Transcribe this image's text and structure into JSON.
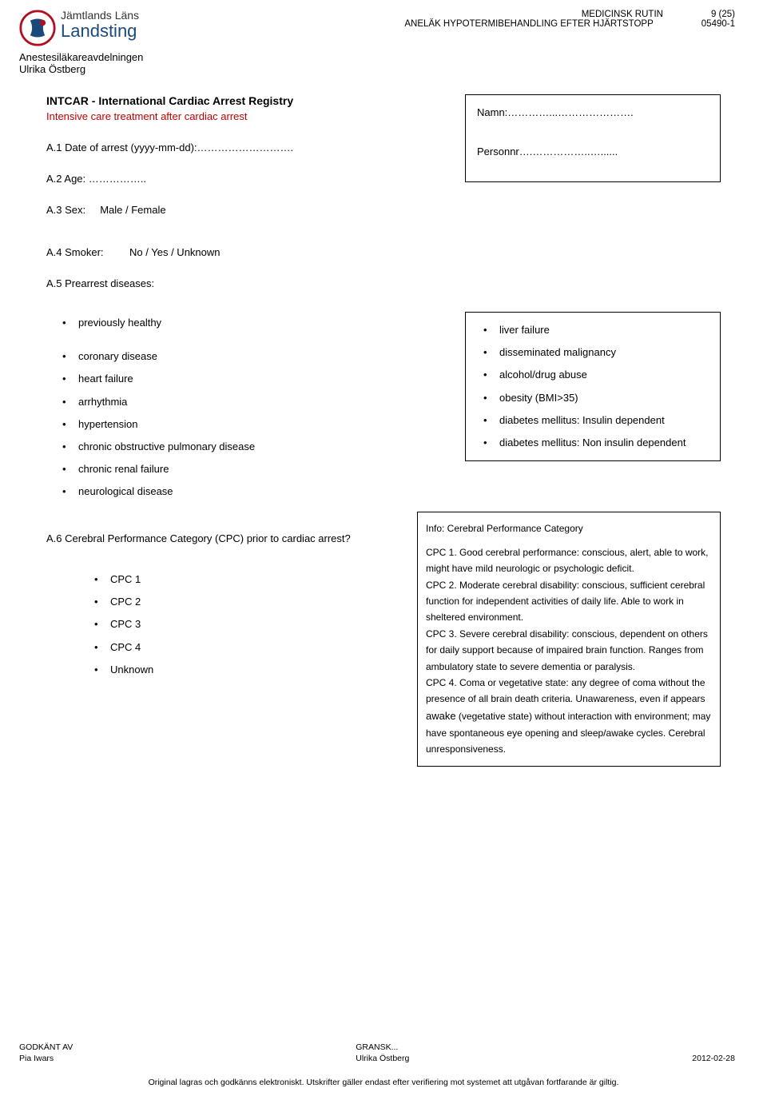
{
  "header": {
    "org_line1": "Jämtlands Läns",
    "org_line2": "Landsting",
    "doc_type": "MEDICINSK RUTIN",
    "page_label": "9 (25)",
    "doc_title": "ANELÄK HYPOTERMIBEHANDLING EFTER HJÄRTSTOPP",
    "doc_ref": "05490-1",
    "department": "Anestesiläkareavdelningen",
    "author": "Ulrika Östberg"
  },
  "form": {
    "title1": "INTCAR - International Cardiac Arrest Registry",
    "title2": "Intensive care treatment after cardiac arrest",
    "a1": "A.1 Date of arrest (yyyy-mm-dd):……………………….",
    "a2": "A.2 Age:       ……………..",
    "a3_label": "A.3 Sex:",
    "a3_value": "Male / Female",
    "a4_label": "A.4 Smoker:",
    "a4_value": "No / Yes / Unknown",
    "namn": "Namn:…………...………………….",
    "personnr": "Personnr….……………..…......",
    "a5_label": "A.5 Prearrest diseases:",
    "a5_left": [
      "previously healthy",
      "coronary disease",
      "heart failure",
      "arrhythmia",
      "hypertension",
      "chronic obstructive pulmonary disease",
      "chronic renal failure",
      "neurological disease"
    ],
    "a5_right": [
      "liver failure",
      "disseminated malignancy",
      "alcohol/drug abuse",
      "obesity (BMI>35)",
      "diabetes mellitus: Insulin dependent",
      "diabetes mellitus: Non insulin dependent"
    ],
    "a6_label": "A.6 Cerebral Performance Category (CPC) prior to cardiac arrest?",
    "cpc_options": [
      "CPC 1",
      "CPC 2",
      "CPC 3",
      "CPC 4",
      "Unknown"
    ],
    "info_title": "Info: Cerebral Performance Category",
    "cpc1": "CPC 1. Good cerebral performance: conscious, alert, able to work, might have mild neurologic or psychologic deficit.",
    "cpc2": " CPC 2. Moderate cerebral disability: conscious, sufficient cerebral function for independent activities of daily life. Able to work in sheltered environment.",
    "cpc3": " CPC 3. Severe cerebral disability: conscious, dependent on others for daily support because of impaired brain function. Ranges from ambulatory state to severe dementia or paralysis.",
    "cpc4a": " CPC 4. Coma or vegetative state: any degree of coma without the presence of all brain death criteria. Unawareness, even if appears ",
    "cpc4_awake": "awake",
    "cpc4b": " (vegetative state) without interaction with environment; may have spontaneous eye opening and sleep/awake cycles. Cerebral unresponsiveness."
  },
  "footer": {
    "approved_label": "GODKÄNT AV",
    "approved_by": "Pia Iwars",
    "reviewed_label": "GRANSK...",
    "reviewed_by": "Ulrika Östberg",
    "date": "2012-02-28",
    "disclaimer": "Original lagras och godkänns elektroniskt. Utskrifter gäller endast efter verifiering mot systemet att utgåvan fortfarande är giltig."
  },
  "colors": {
    "accent_red": "#c00000",
    "logo_blue": "#1a4a7a"
  }
}
